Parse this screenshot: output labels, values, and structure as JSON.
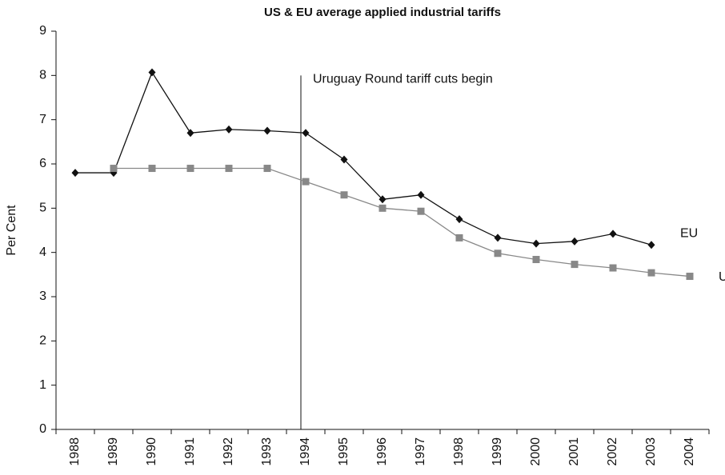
{
  "chart_data": {
    "type": "line",
    "title": "US & EU average applied industrial tariffs",
    "y_label": "Per Cent",
    "categories": [
      "1988",
      "1989",
      "1990",
      "1991",
      "1992",
      "1993",
      "1994",
      "1995",
      "1996",
      "1997",
      "1998",
      "1999",
      "2000",
      "2001",
      "2002",
      "2003",
      "2004"
    ],
    "series": [
      {
        "name": "EU",
        "color": "#111111",
        "marker": "diamond",
        "values": [
          5.8,
          5.8,
          8.07,
          6.7,
          6.78,
          6.75,
          6.7,
          6.1,
          5.2,
          5.3,
          4.75,
          4.33,
          4.2,
          4.25,
          4.42,
          4.17,
          null
        ]
      },
      {
        "name": "US",
        "color": "#888888",
        "marker": "square",
        "values": [
          null,
          5.9,
          5.9,
          5.9,
          5.9,
          5.9,
          5.6,
          5.3,
          5.0,
          4.93,
          4.33,
          3.98,
          3.84,
          3.73,
          3.65,
          3.54,
          3.46
        ]
      }
    ],
    "annotation": {
      "text": "Uruguay Round tariff cuts begin",
      "category": "1994",
      "y": 8
    },
    "ylim": [
      0,
      9
    ],
    "yticks": [
      0,
      1,
      2,
      3,
      4,
      5,
      6,
      7,
      8,
      9
    ]
  }
}
